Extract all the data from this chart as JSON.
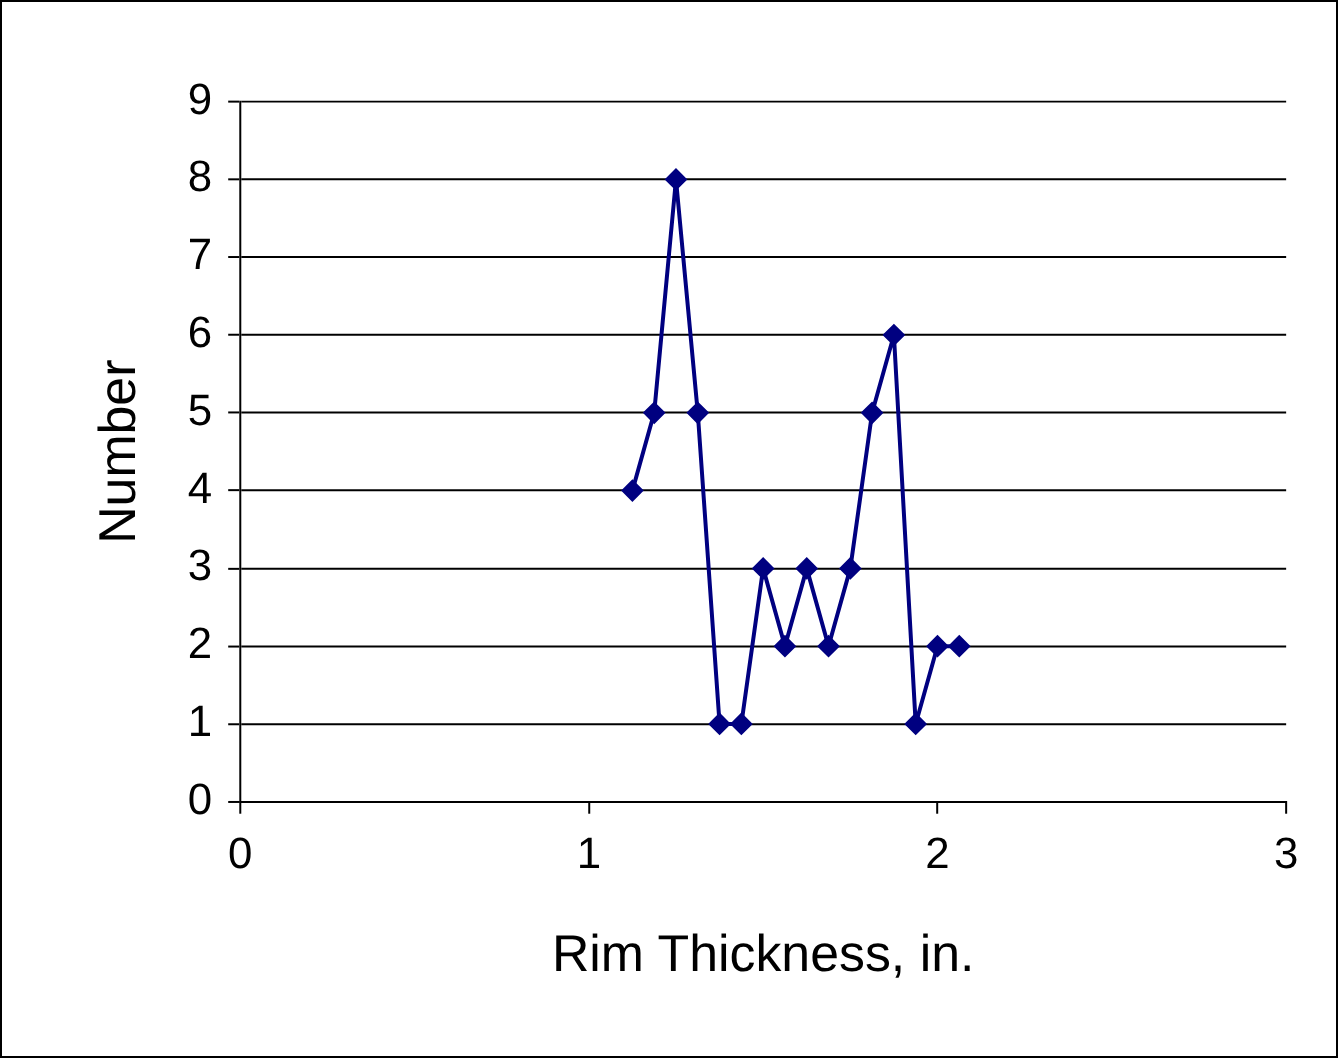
{
  "chart_data": {
    "type": "line",
    "xlabel": "Rim Thickness, in.",
    "ylabel": "Number",
    "x": [
      1.125,
      1.1875,
      1.25,
      1.3125,
      1.375,
      1.4375,
      1.5,
      1.5625,
      1.625,
      1.6875,
      1.75,
      1.8125,
      1.875,
      1.9375,
      2.0,
      2.0625
    ],
    "series": [
      {
        "color": "#000080",
        "values": [
          4,
          5,
          8,
          5,
          1,
          1,
          3,
          2,
          3,
          2,
          3,
          5,
          6,
          1,
          2,
          2
        ]
      }
    ],
    "xlim": [
      0,
      3
    ],
    "xticks": [
      0,
      1,
      2,
      3
    ],
    "ylim": [
      0,
      9
    ],
    "yticks": [
      0,
      1,
      2,
      3,
      4,
      5,
      6,
      7,
      8,
      9
    ],
    "grid": "y",
    "legend": false,
    "marker": "diamond",
    "line_style": "solid"
  }
}
